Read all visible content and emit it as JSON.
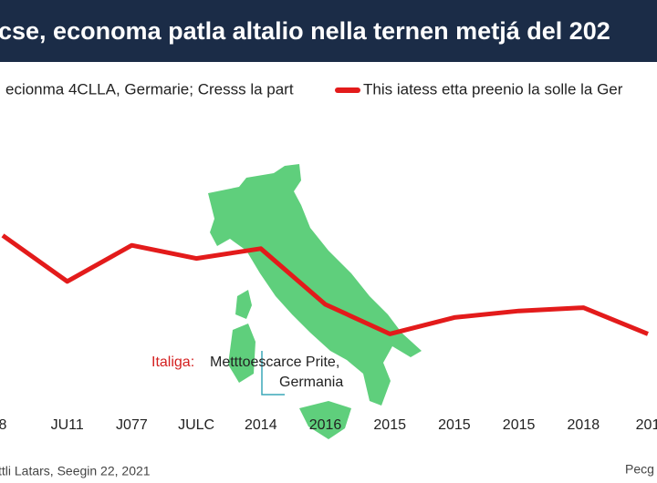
{
  "chart_data": {
    "type": "line",
    "title": "cse, economa patla altalio nella ternen metjá del 202",
    "subtitle": "ecionma 4CLLA, Germarie; Cresss la part",
    "categories": [
      "8",
      "JU11",
      "J077",
      "JULC",
      "2014",
      "2016",
      "2015",
      "2015",
      "2015",
      "2018",
      "201"
    ],
    "series": [
      {
        "name": "This iatess etta preenio la solle la Ger",
        "color": "#e31b1b",
        "values": [
          56,
          42,
          53,
          49,
          52,
          35,
          26,
          31,
          33,
          34,
          26
        ]
      }
    ],
    "ylim": [
      0,
      100
    ],
    "annotations": {
      "label": "Italiga:",
      "text_1": "Metttoescarce Prite,",
      "text_2": "Germania"
    },
    "source": "ttli Latars, Seegin 22, 2021",
    "source_right": "Pecg"
  }
}
